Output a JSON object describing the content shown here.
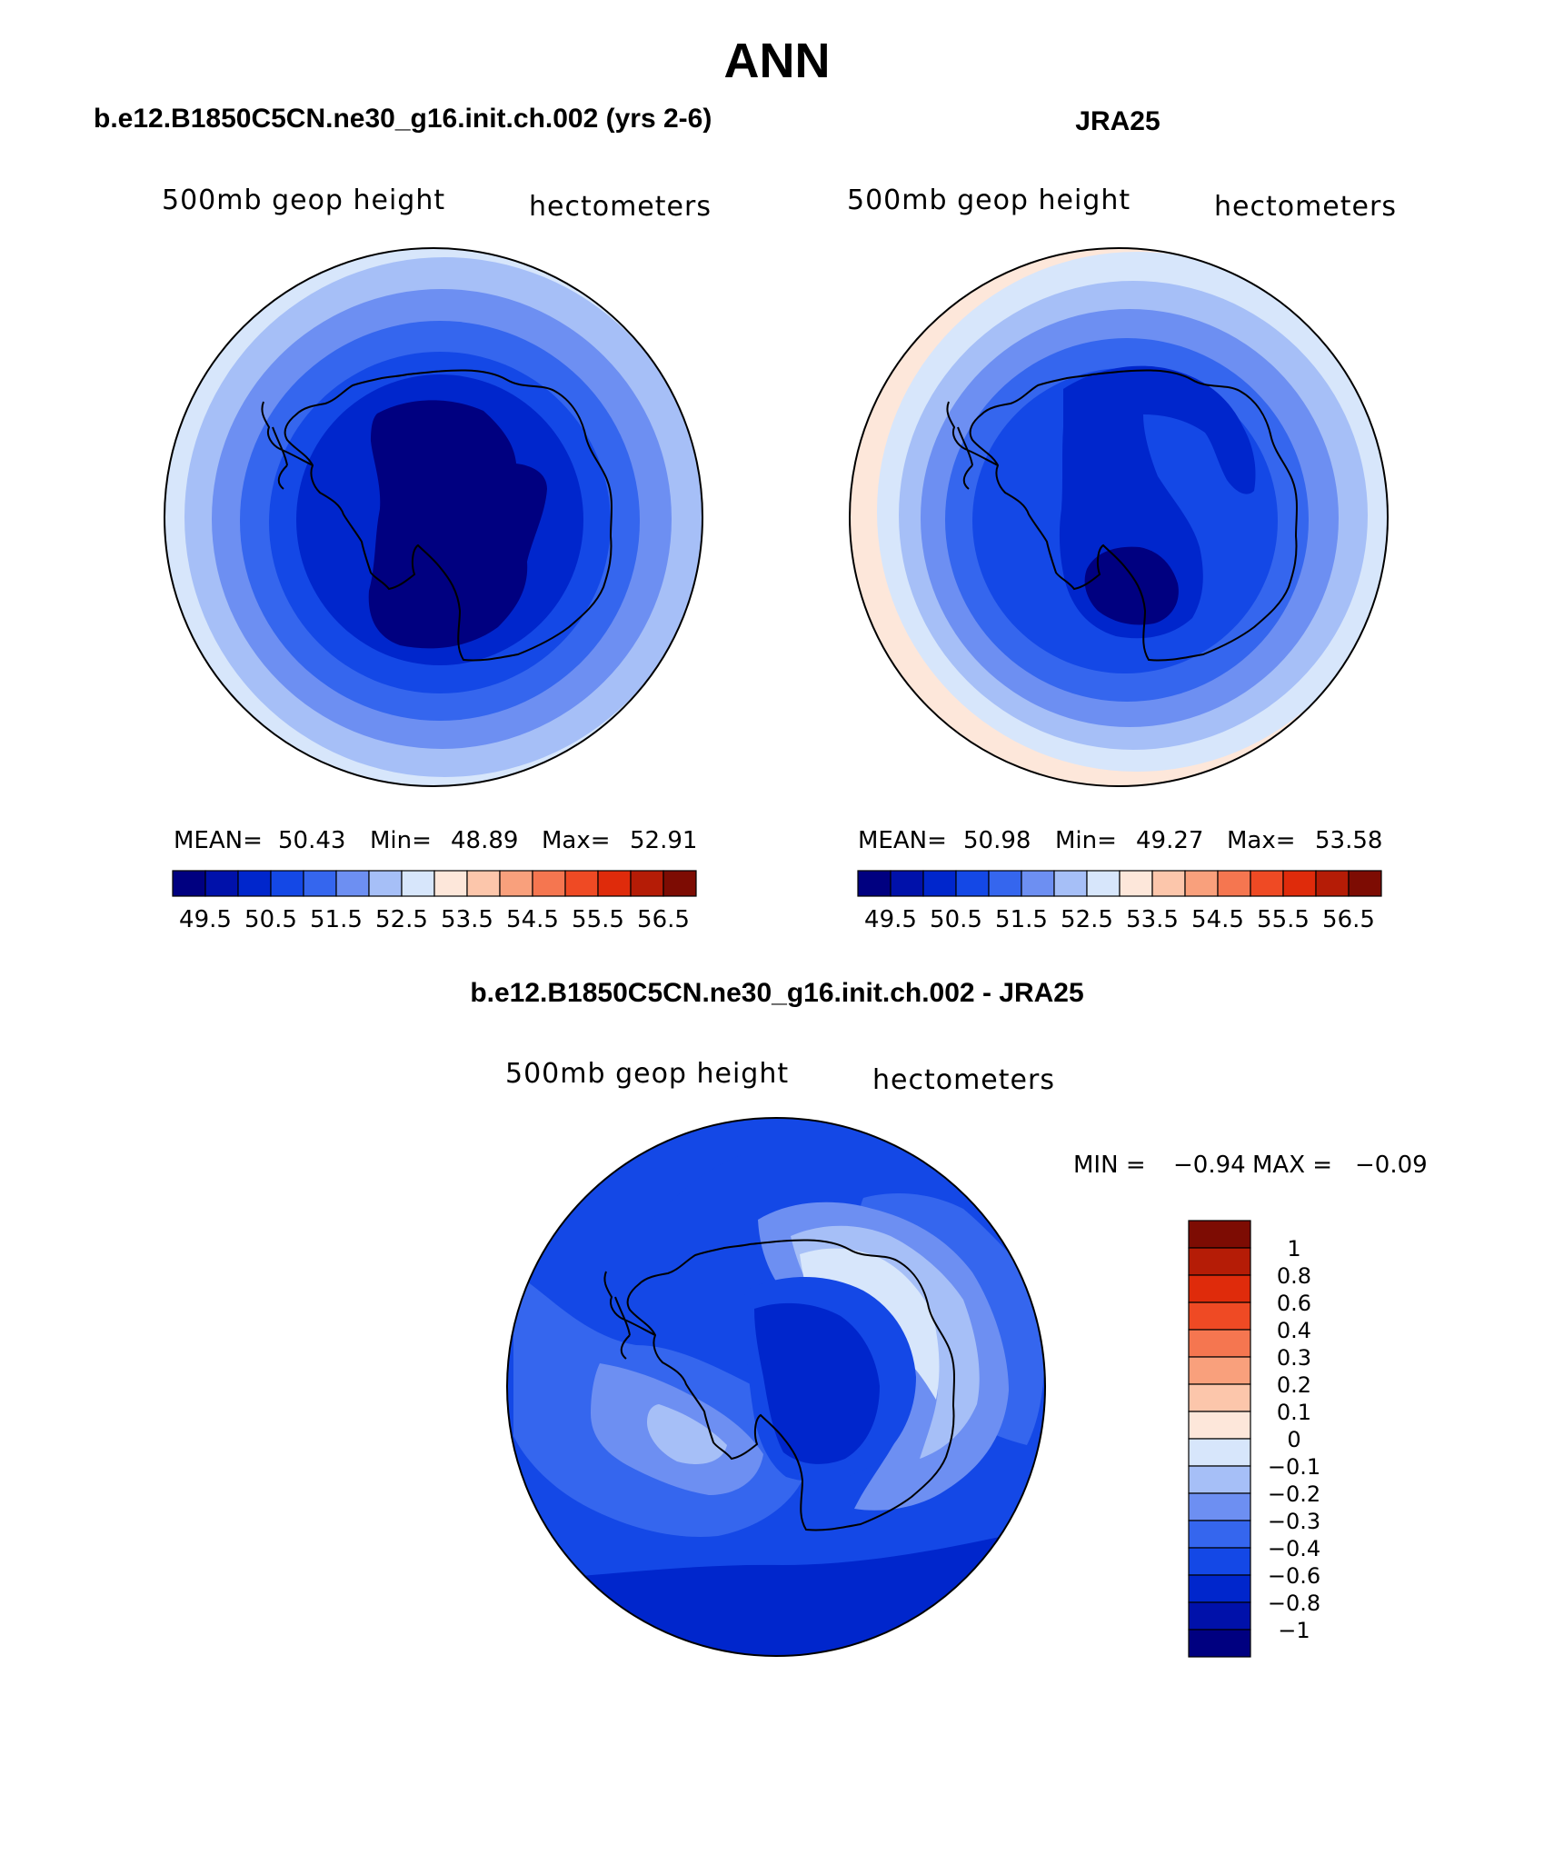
{
  "page": {
    "title": "ANN"
  },
  "panels": [
    {
      "id": "model",
      "header": "b.e12.B1850C5CN.ne30_g16.init.ch.002 (yrs 2-6)",
      "variable": "500mb geop height",
      "units": "hectometers",
      "stats": {
        "mean_label": "MEAN=",
        "mean": "50.43",
        "min_label": "Min=",
        "min": "48.89",
        "max_label": "Max=",
        "max": "52.91"
      },
      "fields": {
        "rings": [
          {
            "level": 0,
            "r": 1.0
          },
          {
            "level": 1,
            "r": 0.9
          },
          {
            "level": 2,
            "r": 0.8
          },
          {
            "level": 3,
            "r": 0.7
          },
          {
            "level": 4,
            "r": 0.6
          },
          {
            "level": 5,
            "r": 0.5
          },
          {
            "level": 6,
            "r": 0.4
          }
        ]
      }
    },
    {
      "id": "obs",
      "header": "JRA25",
      "variable": "500mb geop height",
      "units": "hectometers",
      "stats": {
        "mean_label": "MEAN=",
        "mean": "50.98",
        "min_label": "Min=",
        "min": "49.27",
        "max_label": "Max=",
        "max": "53.58"
      }
    },
    {
      "id": "diff",
      "header": "b.e12.B1850C5CN.ne30_g16.init.ch.002 - JRA25",
      "variable": "500mb geop height",
      "units": "hectometers",
      "stats": {
        "min_label": "MIN =",
        "min": "−0.94",
        "max_label": "MAX =",
        "max": "−0.09"
      }
    }
  ],
  "colorbar_abs": {
    "colors": [
      "#000080",
      "#0011aa",
      "#0026cc",
      "#1448e6",
      "#3566ee",
      "#6d8ff2",
      "#a6bff7",
      "#d7e6fb",
      "#fde7da",
      "#fcc6ab",
      "#f9a07c",
      "#f57650",
      "#ef4a24",
      "#df2b0b",
      "#b51c06",
      "#7d0c03"
    ],
    "tick_labels": [
      "49.5",
      "50.5",
      "51.5",
      "52.5",
      "53.5",
      "54.5",
      "55.5",
      "56.5"
    ]
  },
  "colorbar_diff": {
    "colors": [
      "#7d0c03",
      "#b51c06",
      "#df2b0b",
      "#ef4a24",
      "#f57650",
      "#f9a07c",
      "#fcc6ab",
      "#fde7da",
      "#d7e6fb",
      "#a6bff7",
      "#6d8ff2",
      "#3566ee",
      "#1448e6",
      "#0026cc",
      "#0011aa",
      "#000080"
    ],
    "tick_labels": [
      "1",
      "0.8",
      "0.6",
      "0.4",
      "0.3",
      "0.2",
      "0.1",
      "0",
      "−0.1",
      "−0.2",
      "−0.3",
      "−0.4",
      "−0.6",
      "−0.8",
      "−1"
    ]
  }
}
